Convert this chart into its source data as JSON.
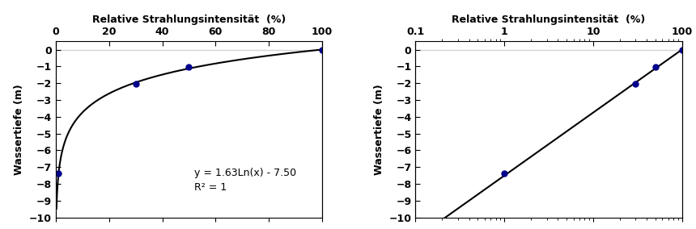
{
  "title": "Relative Strahlungsintensität  (%)",
  "ylabel": "Wassertiefe (m)",
  "equation_text": "y = 1.63Ln(x) - 7.50",
  "r2_text": "R² = 1",
  "a": 1.63,
  "b": -7.5,
  "data_points_x": [
    1,
    30,
    50,
    100
  ],
  "data_points_y": [
    -7.37,
    -2.04,
    -1.04,
    0.0
  ],
  "xlim_linear": [
    0,
    100
  ],
  "xlim_log": [
    0.1,
    100
  ],
  "ylim": [
    -10,
    0.5
  ],
  "yticks": [
    0,
    -1,
    -2,
    -3,
    -4,
    -5,
    -6,
    -7,
    -8,
    -9,
    -10
  ],
  "xticks_linear": [
    0,
    20,
    40,
    60,
    80,
    100
  ],
  "marker_color": "#00008B",
  "line_color": "#000000",
  "bg_color": "#ffffff",
  "axes_bg_color": "#ffffff",
  "title_fontsize": 9,
  "label_fontsize": 9,
  "tick_fontsize": 9,
  "annotation_fontsize": 9
}
